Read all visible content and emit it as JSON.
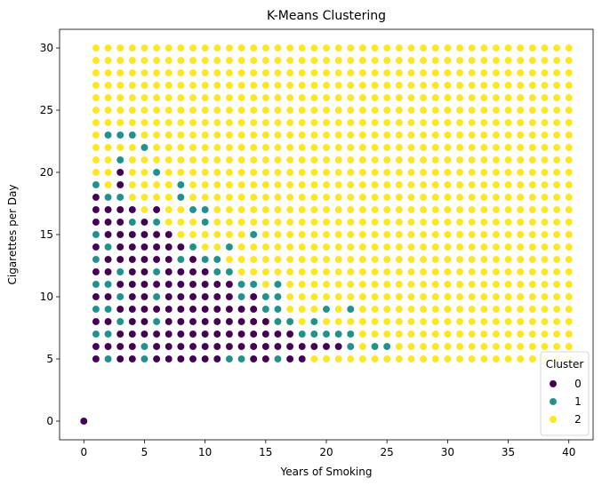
{
  "chart_data": {
    "type": "scatter",
    "title": "K-Means Clustering",
    "xlabel": "Years of Smoking",
    "ylabel": "Cigarettes per Day",
    "xlim": [
      -2,
      42
    ],
    "ylim": [
      -1.5,
      31.5
    ],
    "xticks": [
      0,
      5,
      10,
      15,
      20,
      25,
      30,
      35,
      40
    ],
    "yticks": [
      0,
      5,
      10,
      15,
      20,
      25,
      30
    ],
    "grid": false,
    "legend": {
      "title": "Cluster",
      "placement": "lower-right",
      "entries": [
        "0",
        "1",
        "2"
      ]
    },
    "colors": {
      "0": "#440154",
      "1": "#21918c",
      "2": "#fde725"
    },
    "grid_points": {
      "x_range": [
        1,
        40
      ],
      "y_range": [
        5,
        30
      ],
      "default_cluster": 2
    },
    "series": [
      {
        "name": "0",
        "points": [
          [
            0,
            0
          ],
          [
            1,
            5
          ],
          [
            1,
            6
          ],
          [
            1,
            8
          ],
          [
            1,
            10
          ],
          [
            1,
            12
          ],
          [
            1,
            14
          ],
          [
            1,
            16
          ],
          [
            1,
            17
          ],
          [
            1,
            18
          ],
          [
            2,
            6
          ],
          [
            2,
            8
          ],
          [
            2,
            10
          ],
          [
            2,
            12
          ],
          [
            2,
            13
          ],
          [
            2,
            15
          ],
          [
            2,
            16
          ],
          [
            2,
            17
          ],
          [
            3,
            5
          ],
          [
            3,
            6
          ],
          [
            3,
            7
          ],
          [
            3,
            9
          ],
          [
            3,
            11
          ],
          [
            3,
            13
          ],
          [
            3,
            14
          ],
          [
            3,
            15
          ],
          [
            3,
            16
          ],
          [
            3,
            17
          ],
          [
            3,
            19
          ],
          [
            3,
            20
          ],
          [
            4,
            5
          ],
          [
            4,
            6
          ],
          [
            4,
            7
          ],
          [
            4,
            8
          ],
          [
            4,
            9
          ],
          [
            4,
            10
          ],
          [
            4,
            11
          ],
          [
            4,
            12
          ],
          [
            4,
            13
          ],
          [
            4,
            14
          ],
          [
            4,
            15
          ],
          [
            4,
            17
          ],
          [
            5,
            7
          ],
          [
            5,
            8
          ],
          [
            5,
            9
          ],
          [
            5,
            10
          ],
          [
            5,
            11
          ],
          [
            5,
            12
          ],
          [
            5,
            13
          ],
          [
            5,
            14
          ],
          [
            5,
            15
          ],
          [
            5,
            16
          ],
          [
            6,
            5
          ],
          [
            6,
            6
          ],
          [
            6,
            7
          ],
          [
            6,
            9
          ],
          [
            6,
            11
          ],
          [
            6,
            13
          ],
          [
            6,
            14
          ],
          [
            6,
            15
          ],
          [
            6,
            17
          ],
          [
            7,
            5
          ],
          [
            7,
            6
          ],
          [
            7,
            7
          ],
          [
            7,
            8
          ],
          [
            7,
            9
          ],
          [
            7,
            10
          ],
          [
            7,
            11
          ],
          [
            7,
            12
          ],
          [
            7,
            13
          ],
          [
            7,
            14
          ],
          [
            7,
            15
          ],
          [
            8,
            5
          ],
          [
            8,
            6
          ],
          [
            8,
            7
          ],
          [
            8,
            8
          ],
          [
            8,
            9
          ],
          [
            8,
            10
          ],
          [
            8,
            11
          ],
          [
            8,
            12
          ],
          [
            8,
            14
          ],
          [
            9,
            5
          ],
          [
            9,
            6
          ],
          [
            9,
            7
          ],
          [
            9,
            8
          ],
          [
            9,
            9
          ],
          [
            9,
            10
          ],
          [
            9,
            11
          ],
          [
            9,
            12
          ],
          [
            9,
            13
          ],
          [
            10,
            5
          ],
          [
            10,
            6
          ],
          [
            10,
            7
          ],
          [
            10,
            8
          ],
          [
            10,
            9
          ],
          [
            10,
            10
          ],
          [
            10,
            11
          ],
          [
            10,
            12
          ],
          [
            11,
            5
          ],
          [
            11,
            6
          ],
          [
            11,
            7
          ],
          [
            11,
            8
          ],
          [
            11,
            9
          ],
          [
            11,
            10
          ],
          [
            11,
            11
          ],
          [
            12,
            6
          ],
          [
            12,
            7
          ],
          [
            12,
            8
          ],
          [
            12,
            9
          ],
          [
            12,
            10
          ],
          [
            12,
            11
          ],
          [
            13,
            6
          ],
          [
            13,
            7
          ],
          [
            13,
            8
          ],
          [
            13,
            9
          ],
          [
            14,
            5
          ],
          [
            14,
            6
          ],
          [
            14,
            7
          ],
          [
            14,
            8
          ],
          [
            14,
            9
          ],
          [
            14,
            10
          ],
          [
            15,
            5
          ],
          [
            15,
            6
          ],
          [
            15,
            7
          ],
          [
            15,
            8
          ],
          [
            16,
            6
          ],
          [
            16,
            7
          ],
          [
            17,
            5
          ],
          [
            17,
            6
          ],
          [
            17,
            7
          ],
          [
            18,
            5
          ],
          [
            18,
            6
          ],
          [
            19,
            6
          ],
          [
            20,
            6
          ],
          [
            21,
            6
          ]
        ]
      },
      {
        "name": "1",
        "points": [
          [
            1,
            7
          ],
          [
            1,
            9
          ],
          [
            1,
            11
          ],
          [
            1,
            13
          ],
          [
            1,
            15
          ],
          [
            1,
            19
          ],
          [
            2,
            5
          ],
          [
            2,
            7
          ],
          [
            2,
            9
          ],
          [
            2,
            11
          ],
          [
            2,
            14
          ],
          [
            2,
            18
          ],
          [
            2,
            23
          ],
          [
            3,
            8
          ],
          [
            3,
            10
          ],
          [
            3,
            12
          ],
          [
            3,
            18
          ],
          [
            3,
            21
          ],
          [
            3,
            23
          ],
          [
            4,
            16
          ],
          [
            4,
            23
          ],
          [
            5,
            6
          ],
          [
            5,
            5
          ],
          [
            5,
            22
          ],
          [
            6,
            8
          ],
          [
            6,
            10
          ],
          [
            6,
            12
          ],
          [
            6,
            16
          ],
          [
            6,
            20
          ],
          [
            8,
            13
          ],
          [
            8,
            18
          ],
          [
            8,
            19
          ],
          [
            9,
            14
          ],
          [
            9,
            17
          ],
          [
            10,
            13
          ],
          [
            10,
            16
          ],
          [
            10,
            17
          ],
          [
            11,
            12
          ],
          [
            11,
            13
          ],
          [
            12,
            5
          ],
          [
            12,
            12
          ],
          [
            12,
            14
          ],
          [
            13,
            5
          ],
          [
            13,
            10
          ],
          [
            13,
            11
          ],
          [
            14,
            11
          ],
          [
            14,
            15
          ],
          [
            15,
            9
          ],
          [
            15,
            10
          ],
          [
            16,
            5
          ],
          [
            16,
            8
          ],
          [
            16,
            9
          ],
          [
            16,
            10
          ],
          [
            16,
            11
          ],
          [
            17,
            8
          ],
          [
            18,
            7
          ],
          [
            19,
            7
          ],
          [
            19,
            8
          ],
          [
            20,
            7
          ],
          [
            20,
            9
          ],
          [
            21,
            7
          ],
          [
            22,
            6
          ],
          [
            22,
            7
          ],
          [
            22,
            9
          ],
          [
            24,
            6
          ],
          [
            25,
            6
          ]
        ]
      }
    ]
  }
}
